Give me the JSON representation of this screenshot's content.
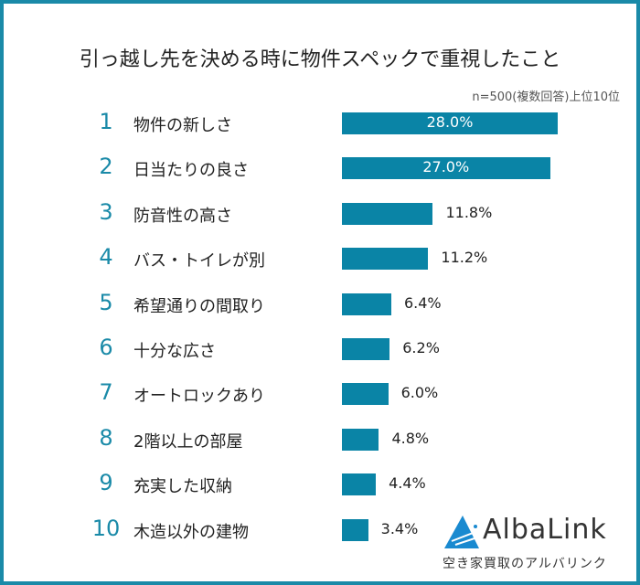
{
  "chart_data": {
    "type": "bar",
    "orientation": "horizontal",
    "title": "引っ越し先を決める時に物件スペックで重視したこと",
    "note": "n=500(複数回答)上位10位",
    "ranks": [
      "1",
      "2",
      "3",
      "4",
      "5",
      "6",
      "7",
      "8",
      "9",
      "10"
    ],
    "categories": [
      "物件の新しさ",
      "日当たりの良さ",
      "防音性の高さ",
      "バス・トイレが別",
      "希望通りの間取り",
      "十分な広さ",
      "オートロックあり",
      "2階以上の部屋",
      "充実した収納",
      "木造以外の建物"
    ],
    "values": [
      28.0,
      27.0,
      11.8,
      11.2,
      6.4,
      6.2,
      6.0,
      4.8,
      4.4,
      3.4
    ],
    "value_labels": [
      "28.0%",
      "27.0%",
      "11.8%",
      "11.2%",
      "6.4%",
      "6.2%",
      "6.0%",
      "4.8%",
      "4.4%",
      "3.4%"
    ],
    "unit": "%",
    "bar_color": "#0a84a6",
    "rank_color": "#1a8aa8"
  },
  "logo": {
    "name": "AlbaLink",
    "tagline": "空き家買取のアルバリンク"
  }
}
